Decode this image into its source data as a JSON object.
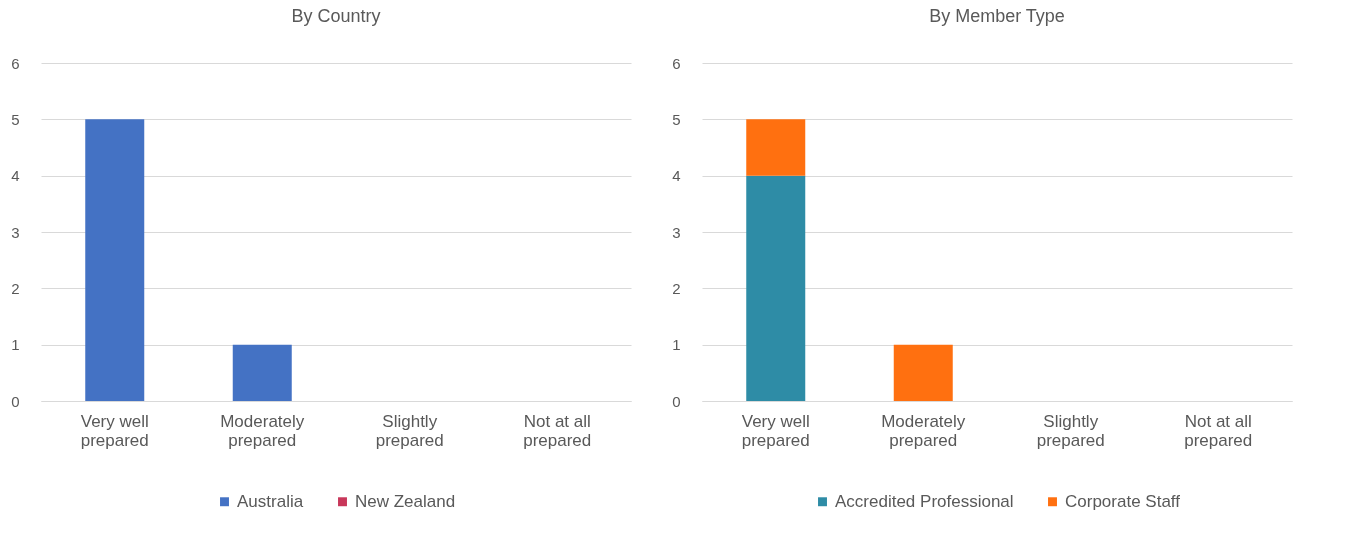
{
  "chart_data": [
    {
      "type": "bar",
      "title": "By Country",
      "stacked": true,
      "categories": [
        "Very well prepared",
        "Moderately prepared",
        "Slightly prepared",
        "Not at all prepared"
      ],
      "series": [
        {
          "name": "Australia",
          "color": "#4472c4",
          "values": [
            5,
            1,
            0,
            0
          ]
        },
        {
          "name": "New Zealand",
          "color": "#c8375a",
          "values": [
            0,
            0,
            0,
            0
          ]
        }
      ],
      "ylim": [
        0,
        6
      ],
      "yticks": [
        0,
        1,
        2,
        3,
        4,
        5,
        6
      ],
      "grid": "y",
      "legend": "bottom"
    },
    {
      "type": "bar",
      "title": "By Member Type",
      "stacked": true,
      "categories": [
        "Very well prepared",
        "Moderately prepared",
        "Slightly prepared",
        "Not at all prepared"
      ],
      "series": [
        {
          "name": "Accredited Professional",
          "color": "#2e8ca6",
          "values": [
            4,
            0,
            0,
            0
          ]
        },
        {
          "name": "Corporate Staff",
          "color": "#ff7010",
          "values": [
            1,
            1,
            0,
            0
          ]
        }
      ],
      "ylim": [
        0,
        6
      ],
      "yticks": [
        0,
        1,
        2,
        3,
        4,
        5,
        6
      ],
      "grid": "y",
      "legend": "bottom"
    }
  ]
}
